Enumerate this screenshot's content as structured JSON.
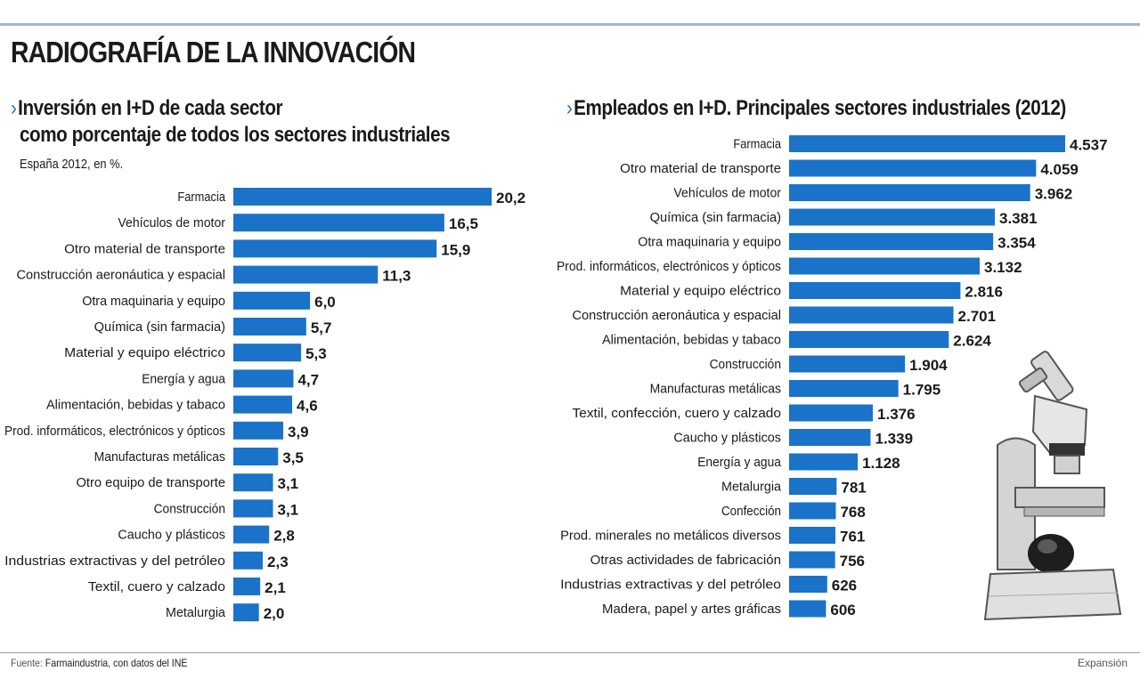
{
  "page": {
    "title": "RADIOGRAFÍA DE LA INNOVACIÓN",
    "source_label": "Fuente:",
    "source_text": "Farmaindustria, con datos del INE",
    "credit": "Expansión",
    "illustration": "microscope-icon"
  },
  "colors": {
    "bar": "#1a73c9",
    "chevron": "#1f73c8",
    "rule": "#9ab8d8"
  },
  "chart_data": [
    {
      "type": "bar",
      "orientation": "horizontal",
      "chevron": "›",
      "title_line1": "Inversión en I+D de cada sector",
      "title_line2": "como porcentaje de todos los sectores industriales",
      "subtitle": "España 2012, en %.",
      "categories": [
        "Farmacia",
        "Vehículos de motor",
        "Otro material de transporte",
        "Construcción aeronáutica y espacial",
        "Otra maquinaria y equipo",
        "Química (sin farmacia)",
        "Material y equipo eléctrico",
        "Energía y agua",
        "Alimentación, bebidas y tabaco",
        "Prod. informáticos, electrónicos y ópticos",
        "Manufacturas metálicas",
        "Otro equipo de transporte",
        "Construcción",
        "Caucho y plásticos",
        "Industrias extractivas y del petróleo",
        "Textil, cuero y calzado",
        "Metalurgia"
      ],
      "values": [
        20.2,
        16.5,
        15.9,
        11.3,
        6.0,
        5.7,
        5.3,
        4.7,
        4.6,
        3.9,
        3.5,
        3.1,
        3.1,
        2.8,
        2.3,
        2.1,
        2.0
      ],
      "value_labels": [
        "20,2",
        "16,5",
        "15,9",
        "11,3",
        "6,0",
        "5,7",
        "5,3",
        "4,7",
        "4,6",
        "3,9",
        "3,5",
        "3,1",
        "3,1",
        "2,8",
        "2,3",
        "2,1",
        "2,0"
      ]
    },
    {
      "type": "bar",
      "orientation": "horizontal",
      "chevron": "›",
      "title_line1": "Empleados en I+D. Principales sectores industriales (2012)",
      "categories": [
        "Farmacia",
        "Otro material de transporte",
        "Vehículos de motor",
        "Química (sin farmacia)",
        "Otra maquinaria y equipo",
        "Prod. informáticos, electrónicos y ópticos",
        "Material y equipo eléctrico",
        "Construcción aeronáutica y espacial",
        "Alimentación, bebidas y tabaco",
        "Construcción",
        "Manufacturas metálicas",
        "Textil, confección, cuero y calzado",
        "Caucho y plásticos",
        "Energía y agua",
        "Metalurgia",
        "Confección",
        "Prod. minerales no metálicos diversos",
        "Otras actividades de fabricación",
        "Industrias extractivas y del petróleo",
        "Madera, papel y artes gráficas"
      ],
      "values": [
        4537,
        4059,
        3962,
        3381,
        3354,
        3132,
        2816,
        2701,
        2624,
        1904,
        1795,
        1376,
        1339,
        1128,
        781,
        768,
        761,
        756,
        626,
        606
      ],
      "value_labels": [
        "4.537",
        "4.059",
        "3.962",
        "3.381",
        "3.354",
        "3.132",
        "2.816",
        "2.701",
        "2.624",
        "1.904",
        "1.795",
        "1.376",
        "1.339",
        "1.128",
        "781",
        "768",
        "761",
        "756",
        "626",
        "606"
      ]
    }
  ]
}
